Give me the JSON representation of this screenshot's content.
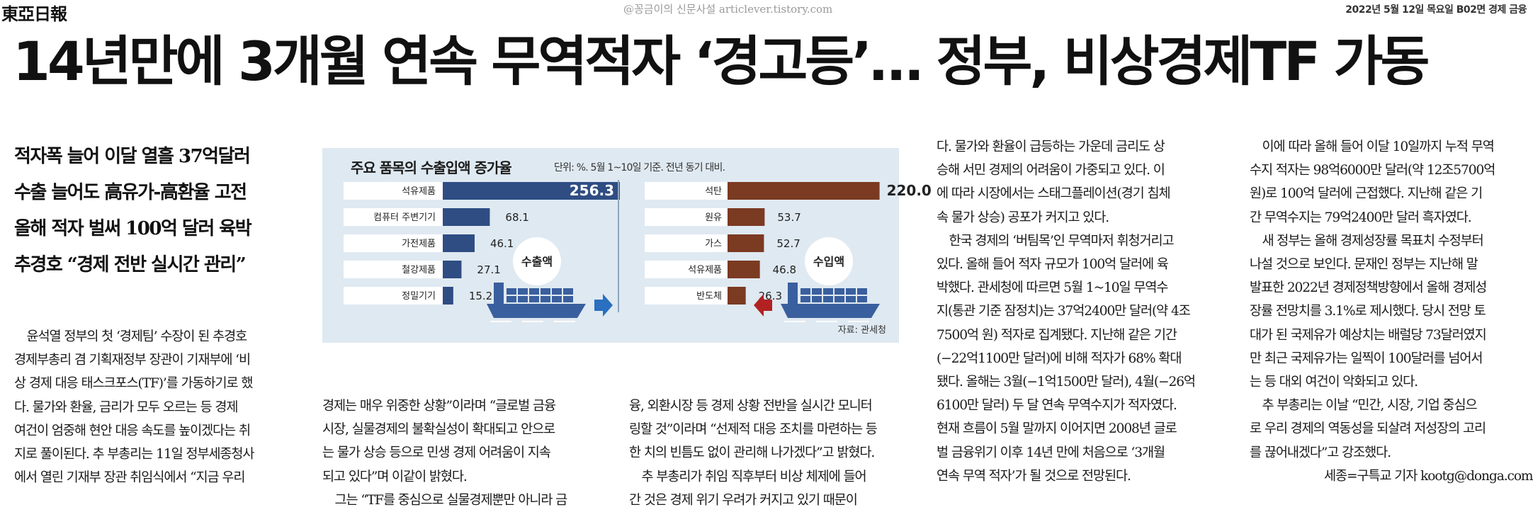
{
  "masthead": {
    "logo": "東亞日報",
    "watermark": "@꽁금이의 신문사설 articlever.tistory.com",
    "dateline": "2022년 5월 12일 목요일 B02면 경제 금융"
  },
  "headline": "14년만에 3개월 연속 무역적자 ‘경고등’… 정부, 비상경제TF 가동",
  "deck": [
    "적자폭 늘어 이달 열흘 37억달러",
    "수출 늘어도 高유가-高환율 고전",
    "올해 적자 벌써 100억 달러 육박",
    "추경호 “경제 전반 실시간 관리”"
  ],
  "columns": {
    "col1": [
      "　윤석열 정부의 첫 ‘경제팀’ 수장이 된 추경호",
      "경제부총리 겸 기획재정부 장관이 기재부에 ‘비",
      "상 경제 대응 태스크포스(TF)’를 가동하기로 했",
      "다. 물가와 환율, 금리가 모두 오르는 등 경제",
      "여건이 엄중해 현안 대응 속도를 높이겠다는 취",
      "지로 풀이된다. 추 부총리는 11일 정부세종청사",
      "에서 열린 기재부 장관 취임식에서 “지금 우리"
    ],
    "col2": [
      "경제는 매우 위중한 상황”이라며 “글로벌 금융",
      "시장, 실물경제의 불확실성이 확대되고 안으로",
      "는 물가 상승 등으로 민생 경제 어려움이 지속",
      "되고 있다”며 이같이 밝혔다.",
      "　그는 “TF를 중심으로 실물경제뿐만 아니라 금"
    ],
    "col3": [
      "융, 외환시장 등 경제 상황 전반을 실시간 모니터",
      "링할 것”이라며 “선제적 대응 조치를 마련하는 등",
      "한 치의 빈틈도 없이 관리해 나가겠다”고 밝혔다.",
      "　추 부총리가 취임 직후부터 비상 체제에 들어",
      "간 것은 경제 위기 우려가 커지고 있기 때문이"
    ],
    "col4": [
      "다. 물가와 환율이 급등하는 가운데 금리도 상",
      "승해 서민 경제의 어려움이 가중되고 있다. 이",
      "에 따라 시장에서는 스태그플레이션(경기 침체",
      "속 물가 상승) 공포가 커지고 있다.",
      "　한국 경제의 ‘버팀목’인 무역마저 휘청거리고",
      "있다. 올해 들어 적자 규모가 100억 달러에 육",
      "박했다. 관세청에 따르면 5월 1~10일 무역수",
      "지(통관 기준 잠정치)는 37억2400만 달러(약 4조",
      "7500억 원) 적자로 집계됐다. 지난해 같은 기간",
      "(−22억1100만 달러)에 비해 적자가 68% 확대",
      "됐다. 올해는 3월(−1억1500만 달러), 4월(−26억",
      "6100만 달러) 두 달 연속 무역수지가 적자였다.",
      "현재 흐름이 5월 말까지 이어지면 2008년 글로",
      "벌 금융위기 이후 14년 만에 처음으로 ‘3개월",
      "연속 무역 적자’가 될 것으로 전망된다."
    ],
    "col5": [
      "　이에 따라 올해 들어 이달 10일까지 누적 무역",
      "수지 적자는 98억6000만 달러(약 12조5700억",
      "원)로 100억 달러에 근접했다. 지난해 같은 기",
      "간 무역수지는 79억2400만 달러 흑자였다.",
      "　새 정부는 올해 경제성장률 목표치 수정부터",
      "나설 것으로 보인다. 문재인 정부는 지난해 말",
      "발표한 2022년 경제정책방향에서 올해 경제성",
      "장률 전망치를 3.1%로 제시했다. 당시 전망 토",
      "대가 된 국제유가 예상치는 배럴당 73달러였지",
      "만 최근 국제유가는 일찍이 100달러를 넘어서",
      "는 등 대외 여건이 악화되고 있다.",
      "　추 부총리는 이날 “민간, 시장, 기업 중심으",
      "로 우리 경제의 역동성을 되살려 저성장의 고리",
      "를 끊어내겠다”고 강조했다.",
      "　　　　　　세종=구특교 기자 kootg@donga.com"
    ]
  },
  "chart_data": {
    "type": "bar",
    "title": "주요 품목의 수출입액 증가율",
    "subtitle": "단위: %. 5월 1~10일 기준. 전년 동기 대비.",
    "source": "자료: 관세청",
    "export_label": "수출액",
    "import_label": "수입액",
    "exports": {
      "categories": [
        "석유제품",
        "컴퓨터 주변기기",
        "가전제품",
        "철강제품",
        "정밀기기"
      ],
      "values": [
        256.3,
        68.1,
        46.1,
        27.1,
        15.2
      ],
      "value_labels": [
        "256.3",
        "68.1",
        "46.1",
        "27.1",
        "15.2"
      ]
    },
    "imports": {
      "categories": [
        "석탄",
        "원유",
        "가스",
        "석유제품",
        "반도체"
      ],
      "values": [
        220.0,
        53.7,
        52.7,
        46.8,
        26.3
      ],
      "value_labels": [
        "220.0",
        "53.7",
        "52.7",
        "46.8",
        "26.3"
      ]
    },
    "colors": {
      "background": "#dfe9f1",
      "label_box": "#ffffff",
      "export_bar": "#2f4d83",
      "import_bar": "#7b3a22",
      "ship": "#3a5f9e",
      "export_arrow": "#2a6fc0",
      "import_arrow": "#b22222"
    }
  }
}
